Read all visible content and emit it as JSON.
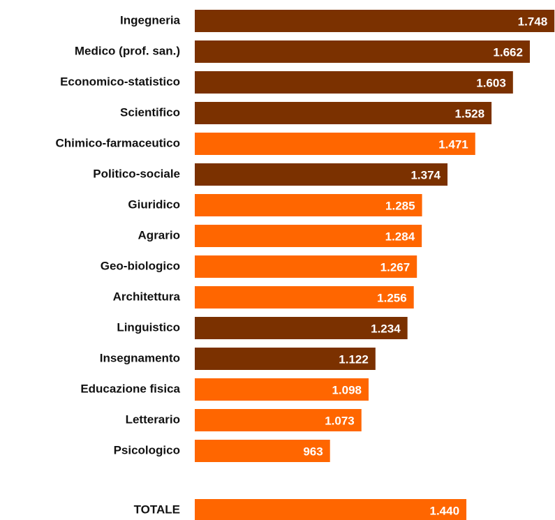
{
  "chart_data": {
    "type": "bar",
    "orientation": "horizontal",
    "categories": [
      "Ingegneria",
      "Medico (prof. san.)",
      "Economico-statistico",
      "Scientifico",
      "Chimico-farmaceutico",
      "Politico-sociale",
      "Giuridico",
      "Agrario",
      "Geo-biologico",
      "Architettura",
      "Linguistico",
      "Insegnamento",
      "Educazione fisica",
      "Letterario",
      "Psicologico",
      "TOTALE"
    ],
    "values": [
      1748,
      1662,
      1603,
      1528,
      1471,
      1374,
      1285,
      1284,
      1267,
      1256,
      1234,
      1122,
      1098,
      1073,
      963,
      1440
    ],
    "value_labels": [
      "1.748",
      "1.662",
      "1.603",
      "1.528",
      "1.471",
      "1.374",
      "1.285",
      "1.284",
      "1.267",
      "1.256",
      "1.234",
      "1.122",
      "1.098",
      "1.073",
      "963",
      "1.440"
    ],
    "colors": [
      "#7b3100",
      "#7b3100",
      "#7b3100",
      "#7b3100",
      "#ff6600",
      "#7b3100",
      "#ff6600",
      "#ff6600",
      "#ff6600",
      "#ff6600",
      "#7b3100",
      "#7b3100",
      "#ff6600",
      "#ff6600",
      "#ff6600",
      "#ff6600"
    ],
    "xlim": [
      490,
      1750
    ]
  }
}
